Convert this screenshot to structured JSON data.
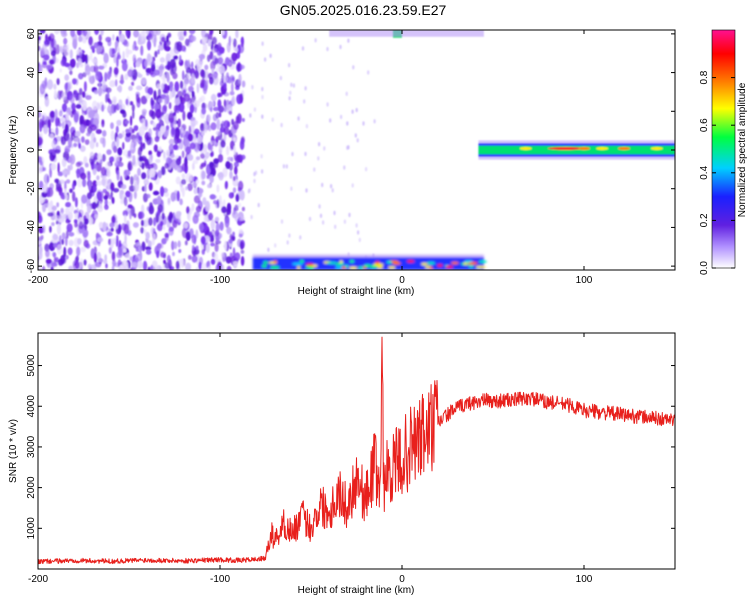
{
  "title": "GN05.2025.016.23.59.E27",
  "colors": {
    "snr_line": "#e8201c",
    "axis": "#000000"
  },
  "chart_data": [
    {
      "type": "heatmap",
      "title": "GN05.2025.016.23.59.E27",
      "xlabel": "Height of straight line (km)",
      "ylabel": "Frequency (Hz)",
      "xlim": [
        -200,
        150
      ],
      "ylim": [
        -62,
        62
      ],
      "x_ticks": [
        -200,
        -100,
        0,
        100
      ],
      "y_ticks": [
        -60,
        -40,
        -20,
        0,
        20,
        40,
        60
      ],
      "colorbar": {
        "label": "Normalized spectral amplitude",
        "range": [
          0,
          1
        ],
        "ticks": [
          0.0,
          0.2,
          0.4,
          0.6,
          0.8
        ],
        "colors": [
          "#ffffff",
          "#b090ff",
          "#6020e0",
          "#1a20ff",
          "#00d0ff",
          "#00ff40",
          "#ffff00",
          "#ff8000",
          "#ff0000",
          "#ff1090"
        ]
      },
      "regions": [
        {
          "x_range": [
            -200,
            -85
          ],
          "freq_range": [
            -60,
            60
          ],
          "amplitude": 0.15,
          "pattern": "broadband noise"
        },
        {
          "x_range": [
            -82,
            45
          ],
          "freq_range": [
            -62,
            -56
          ],
          "amplitude": 0.6,
          "pattern": "low-frequency band"
        },
        {
          "x_range": [
            -5,
            0
          ],
          "freq_range": [
            58,
            62
          ],
          "amplitude": 0.5,
          "pattern": "high-frequency band"
        },
        {
          "x_range": [
            42,
            150
          ],
          "freq_range": [
            -3,
            3
          ],
          "amplitude": 0.9,
          "pattern": "narrow band near 0 Hz"
        }
      ]
    },
    {
      "type": "line",
      "xlabel": "Height of straight line (km)",
      "ylabel": "SNR (10 * v/v)",
      "xlim": [
        -200,
        150
      ],
      "ylim": [
        0,
        5800
      ],
      "x_ticks": [
        -200,
        -100,
        0,
        100
      ],
      "y_ticks": [
        1000,
        2000,
        3000,
        4000,
        5000
      ],
      "series": [
        {
          "x": [
            -200,
            -180,
            -160,
            -140,
            -120,
            -100,
            -90,
            -80,
            -75,
            -72,
            -70,
            -65,
            -60,
            -55,
            -50,
            -45,
            -40,
            -35,
            -30,
            -25,
            -20,
            -15,
            -12,
            -11,
            -10,
            -8,
            -5,
            0,
            5,
            10,
            15,
            20,
            25,
            30,
            35,
            40,
            45,
            50,
            60,
            70,
            80,
            90,
            100,
            110,
            120,
            130,
            140,
            150
          ],
          "y": [
            180,
            210,
            190,
            220,
            200,
            230,
            210,
            240,
            260,
            900,
            700,
            1100,
            900,
            1300,
            1000,
            1600,
            1400,
            1900,
            1500,
            2300,
            1700,
            2600,
            1900,
            5700,
            2100,
            2400,
            2500,
            2700,
            3000,
            3200,
            3400,
            3600,
            3800,
            3950,
            4050,
            4100,
            4150,
            4120,
            4150,
            4200,
            4100,
            4050,
            3900,
            3850,
            3800,
            3750,
            3700,
            3650
          ]
        }
      ]
    }
  ]
}
